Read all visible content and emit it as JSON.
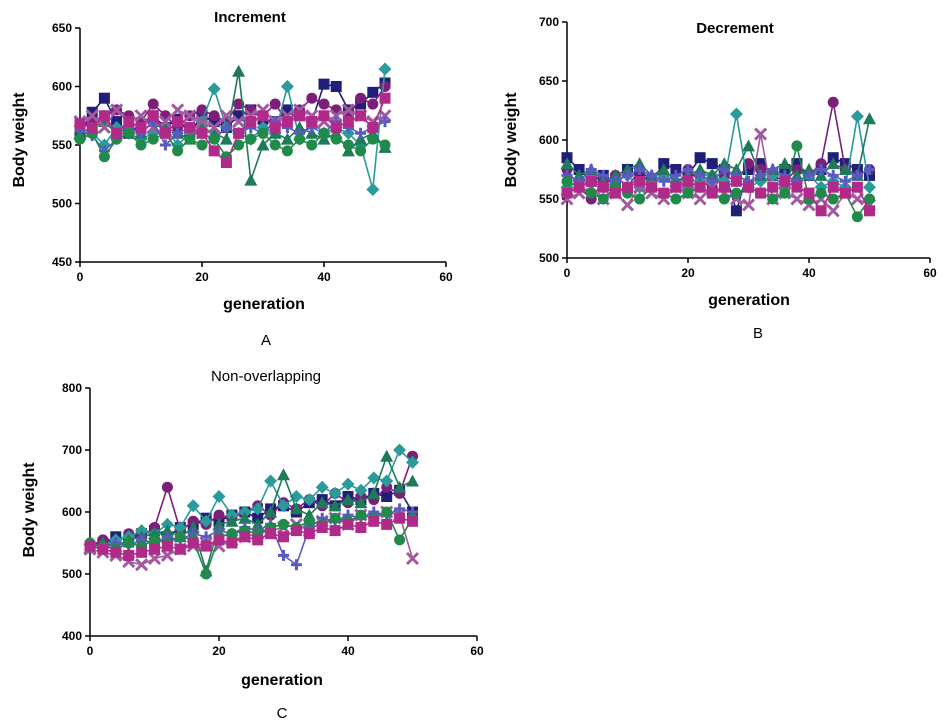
{
  "chart_data": [
    {
      "type": "scatter",
      "title": "Increment",
      "panel_label": "A",
      "xlabel": "generation",
      "ylabel": "Body weight",
      "xlim": [
        0,
        60
      ],
      "ylim": [
        450,
        650
      ],
      "xticks": [
        0,
        20,
        40,
        60
      ],
      "yticks": [
        450,
        500,
        550,
        600,
        650
      ],
      "grid": false,
      "legend": "none",
      "x": [
        0,
        2,
        4,
        6,
        8,
        10,
        12,
        14,
        16,
        18,
        20,
        22,
        24,
        26,
        28,
        30,
        32,
        34,
        36,
        38,
        40,
        42,
        44,
        46,
        48,
        50
      ],
      "series": [
        {
          "color": "#1f1f7a",
          "marker": "square",
          "values": [
            560,
            578,
            590,
            570,
            560,
            568,
            575,
            565,
            572,
            560,
            575,
            570,
            565,
            575,
            580,
            572,
            570,
            580,
            575,
            570,
            602,
            600,
            580,
            585,
            595,
            603
          ]
        },
        {
          "color": "#7b1f7b",
          "marker": "circle",
          "values": [
            565,
            570,
            575,
            580,
            575,
            570,
            585,
            575,
            565,
            575,
            580,
            575,
            570,
            585,
            580,
            575,
            585,
            570,
            580,
            590,
            585,
            580,
            575,
            590,
            585,
            600
          ]
        },
        {
          "color": "#2a9a9a",
          "marker": "diamond",
          "values": [
            555,
            560,
            550,
            565,
            560,
            555,
            560,
            565,
            550,
            560,
            570,
            598,
            565,
            560,
            555,
            565,
            560,
            600,
            555,
            570,
            560,
            565,
            560,
            550,
            512,
            615
          ]
        },
        {
          "color": "#1f7a5a",
          "marker": "triangle",
          "values": [
            560,
            565,
            570,
            560,
            565,
            560,
            570,
            565,
            560,
            555,
            565,
            560,
            555,
            613,
            520,
            550,
            560,
            555,
            565,
            560,
            555,
            560,
            545,
            555,
            560,
            548
          ]
        },
        {
          "color": "#a05aa0",
          "marker": "cross",
          "values": [
            570,
            575,
            565,
            580,
            570,
            575,
            565,
            570,
            580,
            575,
            570,
            565,
            575,
            570,
            575,
            580,
            570,
            575,
            580,
            575,
            570,
            575,
            580,
            575,
            570,
            575
          ]
        },
        {
          "color": "#5a5ac0",
          "marker": "plus",
          "values": [
            562,
            558,
            545,
            555,
            565,
            560,
            570,
            550,
            560,
            565,
            560,
            555,
            565,
            560,
            565,
            560,
            570,
            565,
            560,
            565,
            560,
            570,
            565,
            560,
            565,
            570
          ]
        },
        {
          "color": "#1f8a4a",
          "marker": "circle",
          "values": [
            555,
            560,
            540,
            555,
            560,
            550,
            555,
            560,
            545,
            555,
            550,
            555,
            540,
            550,
            555,
            560,
            550,
            545,
            555,
            550,
            560,
            555,
            550,
            545,
            555,
            550
          ]
        },
        {
          "color": "#b02a8a",
          "marker": "square",
          "values": [
            568,
            565,
            575,
            560,
            570,
            565,
            575,
            560,
            570,
            565,
            560,
            545,
            535,
            560,
            570,
            575,
            565,
            570,
            575,
            570,
            575,
            565,
            570,
            575,
            565,
            590
          ]
        }
      ]
    },
    {
      "type": "scatter",
      "title": "Decrement",
      "panel_label": "B",
      "xlabel": "generation",
      "ylabel": "Body weight",
      "xlim": [
        0,
        60
      ],
      "ylim": [
        500,
        700
      ],
      "xticks": [
        0,
        20,
        40,
        60
      ],
      "yticks": [
        500,
        550,
        600,
        650,
        700
      ],
      "grid": false,
      "legend": "none",
      "x": [
        0,
        2,
        4,
        6,
        8,
        10,
        12,
        14,
        16,
        18,
        20,
        22,
        24,
        26,
        28,
        30,
        32,
        34,
        36,
        38,
        40,
        42,
        44,
        46,
        48,
        50
      ],
      "series": [
        {
          "color": "#1f1f7a",
          "marker": "square",
          "values": [
            585,
            575,
            565,
            570,
            560,
            575,
            570,
            565,
            580,
            575,
            570,
            585,
            580,
            575,
            540,
            575,
            580,
            570,
            575,
            580,
            570,
            575,
            585,
            580,
            575,
            570
          ]
        },
        {
          "color": "#7b1f7b",
          "marker": "circle",
          "values": [
            575,
            560,
            550,
            565,
            570,
            560,
            575,
            565,
            570,
            560,
            575,
            565,
            560,
            570,
            565,
            580,
            575,
            570,
            565,
            575,
            570,
            580,
            632,
            575,
            570,
            575
          ]
        },
        {
          "color": "#2a9a9a",
          "marker": "diamond",
          "values": [
            560,
            565,
            570,
            560,
            565,
            570,
            560,
            565,
            570,
            565,
            560,
            565,
            570,
            565,
            622,
            560,
            565,
            570,
            560,
            565,
            570,
            560,
            565,
            560,
            620,
            560
          ]
        },
        {
          "color": "#1f7a5a",
          "marker": "triangle",
          "values": [
            580,
            570,
            575,
            565,
            570,
            575,
            580,
            570,
            575,
            565,
            570,
            575,
            570,
            580,
            575,
            595,
            570,
            575,
            580,
            570,
            575,
            570,
            580,
            575,
            570,
            618
          ]
        },
        {
          "color": "#a05aa0",
          "marker": "cross",
          "values": [
            550,
            555,
            560,
            550,
            555,
            545,
            560,
            555,
            550,
            560,
            555,
            550,
            560,
            555,
            550,
            545,
            605,
            550,
            555,
            550,
            545,
            550,
            540,
            555,
            550,
            545
          ]
        },
        {
          "color": "#5a5ac0",
          "marker": "plus",
          "values": [
            570,
            565,
            575,
            570,
            565,
            570,
            575,
            570,
            565,
            570,
            575,
            570,
            565,
            575,
            570,
            565,
            570,
            575,
            570,
            565,
            570,
            575,
            570,
            565,
            570,
            575
          ]
        },
        {
          "color": "#1f8a4a",
          "marker": "circle",
          "values": [
            565,
            560,
            555,
            550,
            560,
            555,
            550,
            560,
            555,
            550,
            555,
            560,
            555,
            550,
            555,
            560,
            555,
            550,
            555,
            595,
            550,
            555,
            550,
            555,
            535,
            550
          ]
        },
        {
          "color": "#b02a8a",
          "marker": "square",
          "values": [
            555,
            560,
            565,
            560,
            555,
            560,
            565,
            560,
            555,
            560,
            565,
            560,
            555,
            560,
            565,
            560,
            555,
            560,
            565,
            560,
            555,
            540,
            560,
            555,
            560,
            540
          ]
        }
      ]
    },
    {
      "type": "scatter",
      "title": "Non-overlapping",
      "panel_label": "C",
      "xlabel": "generation",
      "ylabel": "Body weight",
      "xlim": [
        0,
        60
      ],
      "ylim": [
        400,
        800
      ],
      "xticks": [
        0,
        20,
        40,
        60
      ],
      "yticks": [
        400,
        500,
        600,
        700,
        800
      ],
      "grid": false,
      "legend": "none",
      "x": [
        0,
        2,
        4,
        6,
        8,
        10,
        12,
        14,
        16,
        18,
        20,
        22,
        24,
        26,
        28,
        30,
        32,
        34,
        36,
        38,
        40,
        42,
        44,
        46,
        48,
        50
      ],
      "series": [
        {
          "color": "#1f1f7a",
          "marker": "square",
          "values": [
            545,
            550,
            560,
            555,
            565,
            570,
            560,
            575,
            580,
            590,
            585,
            595,
            600,
            590,
            605,
            610,
            600,
            615,
            620,
            610,
            625,
            620,
            630,
            625,
            635,
            600
          ]
        },
        {
          "color": "#7b1f7b",
          "marker": "circle",
          "values": [
            545,
            555,
            550,
            565,
            560,
            575,
            640,
            570,
            585,
            580,
            595,
            590,
            600,
            610,
            595,
            615,
            605,
            620,
            610,
            630,
            615,
            625,
            620,
            640,
            630,
            690
          ]
        },
        {
          "color": "#2a9a9a",
          "marker": "diamond",
          "values": [
            548,
            545,
            555,
            560,
            570,
            565,
            580,
            575,
            610,
            585,
            625,
            595,
            600,
            605,
            650,
            610,
            625,
            620,
            640,
            630,
            645,
            635,
            655,
            650,
            700,
            680
          ]
        },
        {
          "color": "#1f7a5a",
          "marker": "triangle",
          "values": [
            542,
            550,
            545,
            555,
            560,
            565,
            570,
            560,
            575,
            505,
            580,
            585,
            590,
            580,
            600,
            660,
            605,
            595,
            615,
            610,
            620,
            615,
            630,
            690,
            640,
            650
          ]
        },
        {
          "color": "#a05aa0",
          "marker": "cross",
          "values": [
            540,
            535,
            530,
            520,
            515,
            525,
            530,
            540,
            545,
            550,
            545,
            555,
            560,
            565,
            570,
            575,
            580,
            570,
            585,
            590,
            580,
            595,
            590,
            600,
            595,
            525
          ]
        },
        {
          "color": "#5a5ac0",
          "marker": "plus",
          "values": [
            545,
            540,
            550,
            545,
            555,
            550,
            560,
            555,
            565,
            560,
            570,
            565,
            575,
            570,
            580,
            530,
            515,
            575,
            590,
            585,
            595,
            590,
            600,
            595,
            605,
            600
          ]
        },
        {
          "color": "#1f8a4a",
          "marker": "circle",
          "values": [
            550,
            545,
            540,
            550,
            545,
            555,
            550,
            560,
            555,
            500,
            560,
            565,
            570,
            565,
            575,
            580,
            575,
            585,
            580,
            590,
            585,
            595,
            590,
            600,
            555,
            590
          ]
        },
        {
          "color": "#b02a8a",
          "marker": "square",
          "values": [
            545,
            540,
            535,
            530,
            535,
            540,
            545,
            540,
            550,
            545,
            555,
            550,
            560,
            555,
            565,
            560,
            570,
            565,
            575,
            570,
            580,
            575,
            585,
            580,
            590,
            585
          ]
        }
      ]
    }
  ]
}
